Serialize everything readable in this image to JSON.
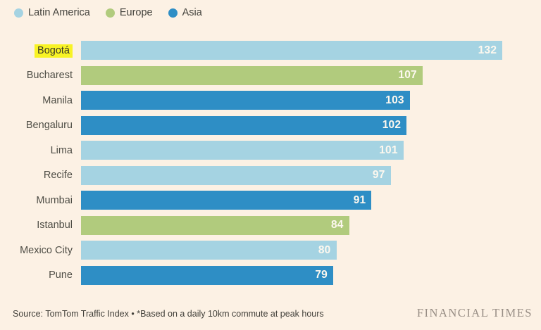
{
  "legend": {
    "items": [
      {
        "label": "Latin America",
        "color": "#a5d3e2"
      },
      {
        "label": "Europe",
        "color": "#b1cb7d"
      },
      {
        "label": "Asia",
        "color": "#2e8ec5"
      }
    ]
  },
  "chart_data": {
    "type": "bar",
    "orientation": "horizontal",
    "title": "",
    "categories": [
      "Bogotá",
      "Bucharest",
      "Manila",
      "Bengaluru",
      "Lima",
      "Recife",
      "Mumbai",
      "Istanbul",
      "Mexico City",
      "Pune"
    ],
    "values": [
      132,
      107,
      103,
      102,
      101,
      97,
      91,
      84,
      80,
      79
    ],
    "regions": [
      "Latin America",
      "Europe",
      "Asia",
      "Asia",
      "Latin America",
      "Latin America",
      "Asia",
      "Europe",
      "Latin America",
      "Asia"
    ],
    "region_colors": {
      "Latin America": "#a5d3e2",
      "Europe": "#b1cb7d",
      "Asia": "#2e8ec5"
    },
    "highlighted_category": "Bogotá",
    "highlight_color": "#f8f325",
    "xlim": [
      0,
      132
    ],
    "max_bar_fraction": 0.916,
    "value_labels": true,
    "legend_position": "top-left",
    "grid": false
  },
  "colors": {
    "background": "#fcf1e4",
    "label_text": "#4f4e46",
    "value_text": "#fdf8ef"
  },
  "footer": {
    "source": "Source: TomTom Traffic Index • *Based on a daily 10km commute at peak hours",
    "brand": "FINANCIAL TIMES"
  }
}
